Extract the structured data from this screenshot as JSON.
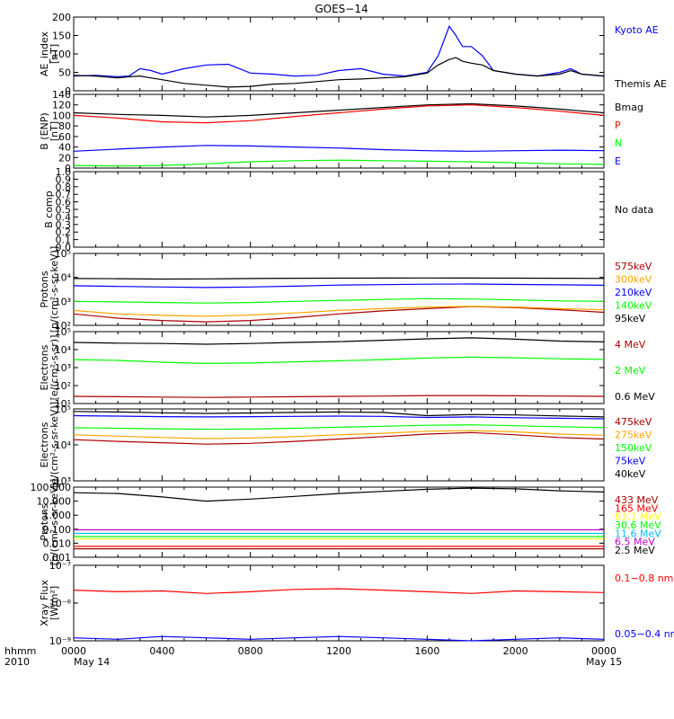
{
  "title": "GOES−14",
  "x_axis": {
    "row1_label": "hhmm",
    "row2_label": "2010",
    "ticks": [
      "0000",
      "0400",
      "0800",
      "1200",
      "1600",
      "2000",
      "0000"
    ],
    "date_start": "May 14",
    "date_end": "May 15"
  },
  "colors": {
    "black": "#000000",
    "blue": "#0000ff",
    "red": "#ff0000",
    "green": "#00ff00",
    "darkred": "#aa0000",
    "orange": "#ffa500",
    "yellow": "#ffff00",
    "cyan": "#00bfff",
    "purple": "#c000c0"
  },
  "chart_data": [
    {
      "type": "line",
      "ylabel": "AE_index\n[nT]",
      "yscale": "linear",
      "ylim": [
        0,
        200
      ],
      "yticks": [
        "0",
        "50",
        "100",
        "150",
        "200"
      ],
      "x_hours": [
        0,
        1,
        2,
        2.5,
        3,
        3.5,
        4,
        5,
        6,
        7,
        8,
        9,
        10,
        11,
        12,
        13,
        14,
        15,
        16,
        16.5,
        17,
        17.3,
        17.6,
        18,
        18.5,
        19,
        20,
        21,
        22,
        22.5,
        23,
        24
      ],
      "series": [
        {
          "name": "Kyoto AE",
          "color": "blue",
          "values": [
            40,
            42,
            38,
            40,
            60,
            55,
            45,
            60,
            70,
            72,
            48,
            45,
            40,
            42,
            55,
            60,
            45,
            40,
            50,
            95,
            175,
            150,
            120,
            120,
            95,
            55,
            45,
            40,
            50,
            60,
            45,
            40
          ]
        },
        {
          "name": "Themis AE",
          "color": "black",
          "values": [
            42,
            40,
            35,
            38,
            40,
            35,
            30,
            20,
            15,
            10,
            12,
            18,
            20,
            25,
            30,
            32,
            35,
            38,
            48,
            70,
            85,
            90,
            80,
            75,
            70,
            55,
            45,
            40,
            45,
            55,
            45,
            40
          ]
        }
      ]
    },
    {
      "type": "line",
      "ylabel": "B (ENP)\n[nT]",
      "yscale": "linear",
      "ylim": [
        0,
        140
      ],
      "yticks": [
        "0",
        "20",
        "40",
        "60",
        "80",
        "100",
        "120",
        "140"
      ],
      "x_hours": [
        0,
        2,
        4,
        6,
        8,
        10,
        12,
        14,
        16,
        18,
        20,
        22,
        24
      ],
      "series": [
        {
          "name": "Bmag",
          "color": "black",
          "values": [
            105,
            102,
            100,
            97,
            100,
            105,
            110,
            115,
            120,
            122,
            118,
            112,
            105
          ]
        },
        {
          "name": "P",
          "color": "red",
          "values": [
            100,
            95,
            88,
            86,
            90,
            98,
            105,
            112,
            118,
            120,
            115,
            108,
            100
          ]
        },
        {
          "name": "N",
          "color": "green",
          "values": [
            5,
            4,
            5,
            8,
            12,
            14,
            15,
            14,
            13,
            12,
            10,
            8,
            7
          ]
        },
        {
          "name": "E",
          "color": "blue",
          "values": [
            32,
            36,
            40,
            43,
            42,
            40,
            38,
            35,
            33,
            32,
            33,
            34,
            33
          ]
        }
      ]
    },
    {
      "type": "line",
      "ylabel": "B comp",
      "yscale": "linear",
      "ylim": [
        0,
        1
      ],
      "yticks": [
        "0.0",
        "0.1",
        "0.2",
        "0.3",
        "0.4",
        "0.5",
        "0.6",
        "0.7",
        "0.8",
        "0.9",
        "1.0"
      ],
      "annotation": "No data",
      "series": []
    },
    {
      "type": "line",
      "ylabel": "Protons\n[p/(cm²-s-sr-keV)]",
      "yscale": "log",
      "ylim": [
        100,
        100000
      ],
      "yticks": [
        "10²",
        "10³",
        "10⁴",
        "10⁵"
      ],
      "x_hours": [
        0,
        2,
        4,
        6,
        8,
        10,
        12,
        14,
        16,
        18,
        20,
        22,
        24
      ],
      "series": [
        {
          "name": "575keV",
          "color": "darkred",
          "values": [
            300,
            200,
            160,
            140,
            160,
            210,
            300,
            400,
            500,
            600,
            550,
            450,
            350
          ]
        },
        {
          "name": "300keV",
          "color": "orange",
          "values": [
            420,
            300,
            260,
            240,
            270,
            330,
            420,
            500,
            580,
            620,
            580,
            500,
            450
          ]
        },
        {
          "name": "210keV",
          "color": "blue",
          "values": [
            4500,
            4200,
            4000,
            3800,
            4000,
            4300,
            4800,
            5000,
            5200,
            5300,
            5100,
            4900,
            4700
          ]
        },
        {
          "name": "140keV",
          "color": "green",
          "values": [
            1000,
            950,
            900,
            850,
            900,
            1000,
            1100,
            1200,
            1300,
            1250,
            1150,
            1050,
            1000
          ]
        },
        {
          "name": "95keV",
          "color": "black",
          "values": [
            9000,
            8800,
            8500,
            8700,
            9000,
            9200,
            9300,
            9400,
            9500,
            9400,
            9300,
            9200,
            9100
          ]
        }
      ]
    },
    {
      "type": "line",
      "ylabel": "Electrons\n[e/(cm²-s-sr)]",
      "yscale": "log",
      "ylim": [
        10,
        100000
      ],
      "yticks": [
        "10¹",
        "10²",
        "10³",
        "10⁴",
        "10⁵"
      ],
      "x_hours": [
        0,
        2,
        4,
        6,
        8,
        10,
        12,
        14,
        16,
        18,
        20,
        22,
        24
      ],
      "series": [
        {
          "name": "4 MeV",
          "color": "darkred",
          "values": [
            25,
            24,
            23,
            22,
            23,
            24,
            25,
            26,
            28,
            28,
            27,
            26,
            25
          ]
        },
        {
          "name": "2 MeV",
          "color": "green",
          "values": [
            2800,
            2500,
            2000,
            1700,
            1800,
            2100,
            2400,
            2800,
            3400,
            3800,
            3500,
            3100,
            2900
          ]
        },
        {
          "name": "0.6 MeV",
          "color": "black",
          "values": [
            25000,
            23000,
            22000,
            20000,
            22000,
            25000,
            28000,
            33000,
            40000,
            45000,
            38000,
            30000,
            27000
          ]
        }
      ]
    },
    {
      "type": "line",
      "ylabel": "Electrons\n[e/(cm²-s-sr-keV)]",
      "yscale": "log",
      "ylim": [
        1000,
        100000
      ],
      "yticks": [
        "10³",
        "10⁴",
        "10⁵"
      ],
      "x_hours": [
        0,
        2,
        4,
        6,
        8,
        10,
        12,
        14,
        16,
        18,
        20,
        22,
        24
      ],
      "series": [
        {
          "name": "475keV",
          "color": "darkred",
          "values": [
            14000,
            12500,
            11500,
            10500,
            11000,
            12500,
            14500,
            17000,
            20000,
            22000,
            19000,
            16000,
            14500
          ]
        },
        {
          "name": "275keV",
          "color": "orange",
          "values": [
            19000,
            17500,
            16000,
            15000,
            15500,
            17000,
            19000,
            21000,
            24000,
            25000,
            23000,
            20000,
            18500
          ]
        },
        {
          "name": "150keV",
          "color": "green",
          "values": [
            30000,
            29000,
            28000,
            27000,
            27500,
            29000,
            31000,
            33000,
            35000,
            36000,
            34000,
            32000,
            30000
          ]
        },
        {
          "name": "75keV",
          "color": "blue",
          "values": [
            65000,
            63000,
            61000,
            60000,
            61000,
            62000,
            63000,
            62000,
            58000,
            60000,
            57000,
            55000,
            53000
          ]
        },
        {
          "name": "40keV",
          "color": "black",
          "values": [
            85000,
            82000,
            78000,
            75000,
            77000,
            80000,
            82000,
            80000,
            65000,
            70000,
            68000,
            64000,
            60000
          ]
        }
      ]
    },
    {
      "type": "line",
      "ylabel": "Protons\n[p/(cm²-s-sr-keV)]",
      "yscale": "log",
      "ylim": [
        0.001,
        100
      ],
      "yticks": [
        "0.001",
        "0.010",
        "0.100",
        "1.000",
        "10.000",
        "100.000"
      ],
      "x_hours": [
        0,
        2,
        4,
        6,
        8,
        10,
        12,
        14,
        16,
        18,
        20,
        22,
        24
      ],
      "series": [
        {
          "name": "433 MeV",
          "color": "darkred",
          "values": [
            0.004,
            0.004,
            0.004,
            0.004,
            0.004,
            0.004,
            0.004,
            0.004,
            0.004,
            0.004,
            0.004,
            0.004,
            0.004
          ]
        },
        {
          "name": "165 MeV",
          "color": "red",
          "values": [
            0.006,
            0.006,
            0.006,
            0.006,
            0.006,
            0.006,
            0.006,
            0.006,
            0.006,
            0.006,
            0.006,
            0.006,
            0.006
          ]
        },
        {
          "name": "63.1 MeV",
          "color": "yellow",
          "values": [
            0.02,
            0.02,
            0.02,
            0.02,
            0.02,
            0.02,
            0.02,
            0.02,
            0.02,
            0.02,
            0.02,
            0.02,
            0.02
          ]
        },
        {
          "name": "30.6 MeV",
          "color": "green",
          "values": [
            0.03,
            0.03,
            0.03,
            0.03,
            0.03,
            0.03,
            0.03,
            0.03,
            0.03,
            0.03,
            0.03,
            0.03,
            0.03
          ]
        },
        {
          "name": "11.6 MeV",
          "color": "cyan",
          "values": [
            0.05,
            0.05,
            0.05,
            0.05,
            0.05,
            0.05,
            0.05,
            0.05,
            0.05,
            0.05,
            0.05,
            0.05,
            0.05
          ]
        },
        {
          "name": "6.5 MeV",
          "color": "purple",
          "values": [
            0.09,
            0.09,
            0.09,
            0.09,
            0.09,
            0.09,
            0.09,
            0.09,
            0.09,
            0.09,
            0.09,
            0.09,
            0.09
          ]
        },
        {
          "name": "2.5 MeV",
          "color": "black",
          "values": [
            40,
            35,
            20,
            10,
            14,
            22,
            35,
            50,
            70,
            85,
            75,
            55,
            45
          ]
        }
      ]
    },
    {
      "type": "line",
      "ylabel": "Xray Flux\n[W/m²]",
      "yscale": "log",
      "ylim": [
        1e-09,
        1e-07
      ],
      "yticks": [
        "10⁻⁹",
        "10⁻⁸",
        "10⁻⁷"
      ],
      "x_hours": [
        0,
        2,
        4,
        6,
        8,
        10,
        12,
        14,
        16,
        18,
        20,
        22,
        24
      ],
      "series": [
        {
          "name": "0.1−0.8 nm",
          "color": "red",
          "values": [
            2.2e-08,
            2e-08,
            2.1e-08,
            1.8e-08,
            2e-08,
            2.3e-08,
            2.4e-08,
            2.2e-08,
            2e-08,
            1.8e-08,
            2.1e-08,
            2e-08,
            1.9e-08
          ]
        },
        {
          "name": "0.05−0.4 nm",
          "color": "blue",
          "values": [
            1.2e-09,
            1.1e-09,
            1.3e-09,
            1.2e-09,
            1.1e-09,
            1.2e-09,
            1.3e-09,
            1.2e-09,
            1.1e-09,
            1e-09,
            1.1e-09,
            1.2e-09,
            1.1e-09
          ]
        }
      ]
    }
  ]
}
